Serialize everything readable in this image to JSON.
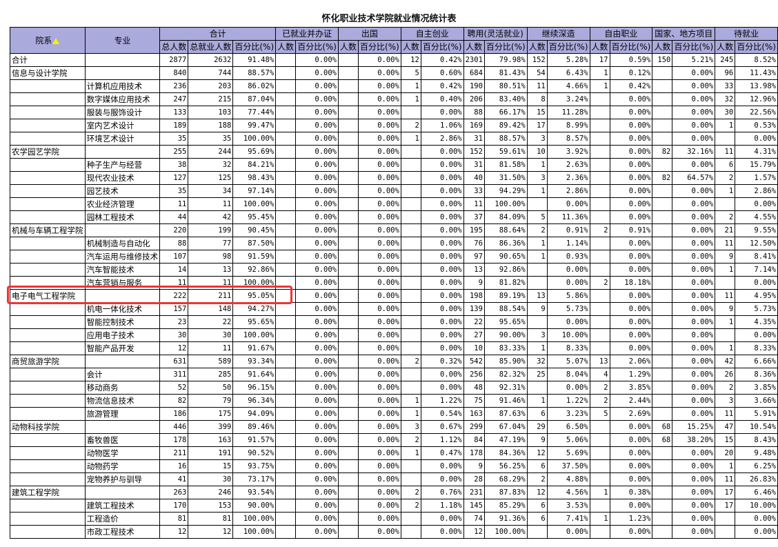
{
  "title": "怀化职业技术学院就业情况统计表",
  "header": {
    "dept": "院系",
    "major": "专业",
    "groups": [
      "合计",
      "已就业并办证",
      "出国",
      "自主创业",
      "聘用(灵活就业)",
      "继续深造",
      "自由职业",
      "国家、地方项目",
      "待就业"
    ],
    "total_sub": [
      "总人数",
      "总就业人数",
      "百分比(%)"
    ],
    "count": "人数",
    "pct": "百分比(%)"
  },
  "sort_indicator_color": "#ffee00",
  "highlight_color": "#ee3333",
  "highlighted_row": "电子电气工程学院",
  "table": {
    "rows": [
      [
        "合计",
        "",
        "2877",
        "2632",
        "91.48%",
        "",
        "0.00%",
        "",
        "0.00%",
        "12",
        "0.42%",
        "2301",
        "79.98%",
        "152",
        "5.28%",
        "17",
        "0.59%",
        "150",
        "5.21%",
        "245",
        "8.52%"
      ],
      [
        "信息与设计学院",
        "",
        "840",
        "744",
        "88.57%",
        "",
        "0.00%",
        "",
        "0.00%",
        "5",
        "0.60%",
        "684",
        "81.43%",
        "54",
        "6.43%",
        "1",
        "0.12%",
        "",
        "0.00%",
        "96",
        "11.43%"
      ],
      [
        "",
        "计算机应用技术",
        "236",
        "203",
        "86.02%",
        "",
        "0.00%",
        "",
        "0.00%",
        "1",
        "0.42%",
        "190",
        "80.51%",
        "11",
        "4.66%",
        "1",
        "0.42%",
        "",
        "0.00%",
        "33",
        "13.98%"
      ],
      [
        "",
        "数字媒体应用技术",
        "247",
        "215",
        "87.04%",
        "",
        "0.00%",
        "",
        "0.00%",
        "1",
        "0.40%",
        "206",
        "83.40%",
        "8",
        "3.24%",
        "",
        "0.00%",
        "",
        "0.00%",
        "32",
        "12.96%"
      ],
      [
        "",
        "服装与服饰设计",
        "133",
        "103",
        "77.44%",
        "",
        "0.00%",
        "",
        "0.00%",
        "",
        "0.00%",
        "88",
        "66.17%",
        "15",
        "11.28%",
        "",
        "0.00%",
        "",
        "0.00%",
        "30",
        "22.56%"
      ],
      [
        "",
        "室内艺术设计",
        "189",
        "188",
        "99.47%",
        "",
        "0.00%",
        "",
        "0.00%",
        "2",
        "1.06%",
        "169",
        "89.42%",
        "17",
        "8.99%",
        "",
        "0.00%",
        "",
        "0.00%",
        "1",
        "0.53%"
      ],
      [
        "",
        "环境艺术设计",
        "35",
        "35",
        "100.00%",
        "",
        "0.00%",
        "",
        "0.00%",
        "1",
        "2.86%",
        "31",
        "88.57%",
        "3",
        "8.57%",
        "",
        "0.00%",
        "",
        "0.00%",
        "",
        "0.00%"
      ],
      [
        "农学园艺学院",
        "",
        "255",
        "244",
        "95.69%",
        "",
        "0.00%",
        "",
        "0.00%",
        "",
        "0.00%",
        "152",
        "59.61%",
        "10",
        "3.92%",
        "",
        "0.00%",
        "82",
        "32.16%",
        "11",
        "4.31%"
      ],
      [
        "",
        "种子生产与经营",
        "38",
        "32",
        "84.21%",
        "",
        "0.00%",
        "",
        "0.00%",
        "",
        "0.00%",
        "31",
        "81.58%",
        "1",
        "2.63%",
        "",
        "0.00%",
        "",
        "0.00%",
        "6",
        "15.79%"
      ],
      [
        "",
        "现代农业技术",
        "127",
        "125",
        "98.43%",
        "",
        "0.00%",
        "",
        "0.00%",
        "",
        "0.00%",
        "40",
        "31.50%",
        "3",
        "2.36%",
        "",
        "0.00%",
        "82",
        "64.57%",
        "2",
        "1.57%"
      ],
      [
        "",
        "园艺技术",
        "35",
        "34",
        "97.14%",
        "",
        "0.00%",
        "",
        "0.00%",
        "",
        "0.00%",
        "33",
        "94.29%",
        "1",
        "2.86%",
        "",
        "0.00%",
        "",
        "0.00%",
        "1",
        "2.86%"
      ],
      [
        "",
        "农业经济管理",
        "11",
        "11",
        "100.00%",
        "",
        "0.00%",
        "",
        "0.00%",
        "",
        "0.00%",
        "11",
        "100.00%",
        "",
        "0.00%",
        "",
        "0.00%",
        "",
        "0.00%",
        "",
        "0.00%"
      ],
      [
        "",
        "园林工程技术",
        "44",
        "42",
        "95.45%",
        "",
        "0.00%",
        "",
        "0.00%",
        "",
        "0.00%",
        "37",
        "84.09%",
        "5",
        "11.36%",
        "",
        "0.00%",
        "",
        "0.00%",
        "2",
        "4.55%"
      ],
      [
        "机械与车辆工程学院",
        "",
        "220",
        "199",
        "90.45%",
        "",
        "0.00%",
        "",
        "0.00%",
        "",
        "0.00%",
        "195",
        "88.64%",
        "2",
        "0.91%",
        "2",
        "0.91%",
        "",
        "0.00%",
        "21",
        "9.55%"
      ],
      [
        "",
        "机械制造与自动化",
        "88",
        "77",
        "87.50%",
        "",
        "0.00%",
        "",
        "0.00%",
        "",
        "0.00%",
        "76",
        "86.36%",
        "1",
        "1.14%",
        "",
        "0.00%",
        "",
        "0.00%",
        "11",
        "12.50%"
      ],
      [
        "",
        "汽车运用与维修技术",
        "107",
        "98",
        "91.59%",
        "",
        "0.00%",
        "",
        "0.00%",
        "",
        "0.00%",
        "97",
        "90.65%",
        "1",
        "0.93%",
        "",
        "0.00%",
        "",
        "0.00%",
        "9",
        "8.41%"
      ],
      [
        "",
        "汽车智能技术",
        "14",
        "13",
        "92.86%",
        "",
        "0.00%",
        "",
        "0.00%",
        "",
        "0.00%",
        "13",
        "92.86%",
        "",
        "0.00%",
        "",
        "0.00%",
        "",
        "0.00%",
        "1",
        "7.14%"
      ],
      [
        "",
        "汽车营销与服务",
        "11",
        "11",
        "100.00%",
        "",
        "0.00%",
        "",
        "0.00%",
        "",
        "0.00%",
        "9",
        "81.82%",
        "",
        "0.00%",
        "2",
        "18.18%",
        "",
        "0.00%",
        "",
        "0.00%"
      ],
      [
        "电子电气工程学院",
        "",
        "222",
        "211",
        "95.05%",
        "",
        "0.00%",
        "",
        "0.00%",
        "",
        "0.00%",
        "198",
        "89.19%",
        "13",
        "5.86%",
        "",
        "0.00%",
        "",
        "0.00%",
        "11",
        "4.95%"
      ],
      [
        "",
        "机电一体化技术",
        "157",
        "148",
        "94.27%",
        "",
        "0.00%",
        "",
        "0.00%",
        "",
        "0.00%",
        "139",
        "88.54%",
        "9",
        "5.73%",
        "",
        "0.00%",
        "",
        "0.00%",
        "9",
        "5.73%"
      ],
      [
        "",
        "智能控制技术",
        "23",
        "22",
        "95.65%",
        "",
        "0.00%",
        "",
        "0.00%",
        "",
        "0.00%",
        "22",
        "95.65%",
        "",
        "0.00%",
        "",
        "0.00%",
        "",
        "0.00%",
        "1",
        "4.35%"
      ],
      [
        "",
        "应用电子技术",
        "30",
        "30",
        "100.00%",
        "",
        "0.00%",
        "",
        "0.00%",
        "",
        "0.00%",
        "27",
        "90.00%",
        "3",
        "10.00%",
        "",
        "0.00%",
        "",
        "0.00%",
        "",
        "0.00%"
      ],
      [
        "",
        "智能产品开发",
        "12",
        "11",
        "91.67%",
        "",
        "0.00%",
        "",
        "0.00%",
        "",
        "0.00%",
        "10",
        "83.33%",
        "1",
        "8.33%",
        "",
        "0.00%",
        "",
        "0.00%",
        "1",
        "8.33%"
      ],
      [
        "商贸旅游学院",
        "",
        "631",
        "589",
        "93.34%",
        "",
        "0.00%",
        "",
        "0.00%",
        "2",
        "0.32%",
        "542",
        "85.90%",
        "32",
        "5.07%",
        "13",
        "2.06%",
        "",
        "0.00%",
        "42",
        "6.66%"
      ],
      [
        "",
        "会计",
        "311",
        "285",
        "91.64%",
        "",
        "0.00%",
        "",
        "0.00%",
        "",
        "0.00%",
        "256",
        "82.32%",
        "25",
        "8.04%",
        "4",
        "1.29%",
        "",
        "0.00%",
        "26",
        "8.36%"
      ],
      [
        "",
        "移动商务",
        "52",
        "50",
        "96.15%",
        "",
        "0.00%",
        "",
        "0.00%",
        "",
        "0.00%",
        "48",
        "92.31%",
        "",
        "0.00%",
        "2",
        "3.85%",
        "",
        "0.00%",
        "2",
        "3.85%"
      ],
      [
        "",
        "物流信息技术",
        "82",
        "79",
        "96.34%",
        "",
        "0.00%",
        "",
        "0.00%",
        "1",
        "1.22%",
        "75",
        "91.46%",
        "1",
        "1.22%",
        "2",
        "2.44%",
        "",
        "0.00%",
        "3",
        "3.66%"
      ],
      [
        "",
        "旅游管理",
        "186",
        "175",
        "94.09%",
        "",
        "0.00%",
        "",
        "0.00%",
        "1",
        "0.54%",
        "163",
        "87.63%",
        "6",
        "3.23%",
        "5",
        "2.69%",
        "",
        "0.00%",
        "11",
        "5.91%"
      ],
      [
        "动物科技学院",
        "",
        "446",
        "399",
        "89.46%",
        "",
        "0.00%",
        "",
        "0.00%",
        "3",
        "0.67%",
        "299",
        "67.04%",
        "29",
        "6.50%",
        "",
        "0.00%",
        "68",
        "15.25%",
        "47",
        "10.54%"
      ],
      [
        "",
        "畜牧兽医",
        "178",
        "163",
        "91.57%",
        "",
        "0.00%",
        "",
        "0.00%",
        "2",
        "1.12%",
        "84",
        "47.19%",
        "9",
        "5.06%",
        "",
        "0.00%",
        "68",
        "38.20%",
        "15",
        "8.43%"
      ],
      [
        "",
        "动物医学",
        "211",
        "191",
        "90.52%",
        "",
        "0.00%",
        "",
        "0.00%",
        "1",
        "0.47%",
        "178",
        "84.36%",
        "12",
        "5.69%",
        "",
        "0.00%",
        "",
        "0.00%",
        "20",
        "9.48%"
      ],
      [
        "",
        "动物药学",
        "16",
        "15",
        "93.75%",
        "",
        "0.00%",
        "",
        "0.00%",
        "",
        "0.00%",
        "9",
        "56.25%",
        "6",
        "37.50%",
        "",
        "0.00%",
        "",
        "0.00%",
        "1",
        "6.25%"
      ],
      [
        "",
        "宠物养护与驯导",
        "41",
        "30",
        "73.17%",
        "",
        "0.00%",
        "",
        "0.00%",
        "",
        "0.00%",
        "28",
        "68.29%",
        "2",
        "4.88%",
        "",
        "0.00%",
        "",
        "0.00%",
        "11",
        "26.83%"
      ],
      [
        "建筑工程学院",
        "",
        "263",
        "246",
        "93.54%",
        "",
        "0.00%",
        "",
        "0.00%",
        "2",
        "0.76%",
        "231",
        "87.83%",
        "12",
        "4.56%",
        "1",
        "0.38%",
        "",
        "0.00%",
        "17",
        "6.46%"
      ],
      [
        "",
        "建筑工程技术",
        "170",
        "153",
        "90.00%",
        "",
        "0.00%",
        "",
        "0.00%",
        "2",
        "1.18%",
        "145",
        "85.29%",
        "6",
        "3.53%",
        "",
        "0.00%",
        "",
        "0.00%",
        "17",
        "10.00%"
      ],
      [
        "",
        "工程造价",
        "81",
        "81",
        "100.00%",
        "",
        "0.00%",
        "",
        "0.00%",
        "",
        "0.00%",
        "74",
        "91.36%",
        "6",
        "7.41%",
        "1",
        "1.23%",
        "",
        "0.00%",
        "",
        "0.00%"
      ],
      [
        "",
        "市政工程技术",
        "12",
        "12",
        "100.00%",
        "",
        "0.00%",
        "",
        "0.00%",
        "",
        "0.00%",
        "12",
        "100.00%",
        "",
        "0.00%",
        "",
        "0.00%",
        "",
        "0.00%",
        "",
        "0.00%"
      ]
    ]
  }
}
